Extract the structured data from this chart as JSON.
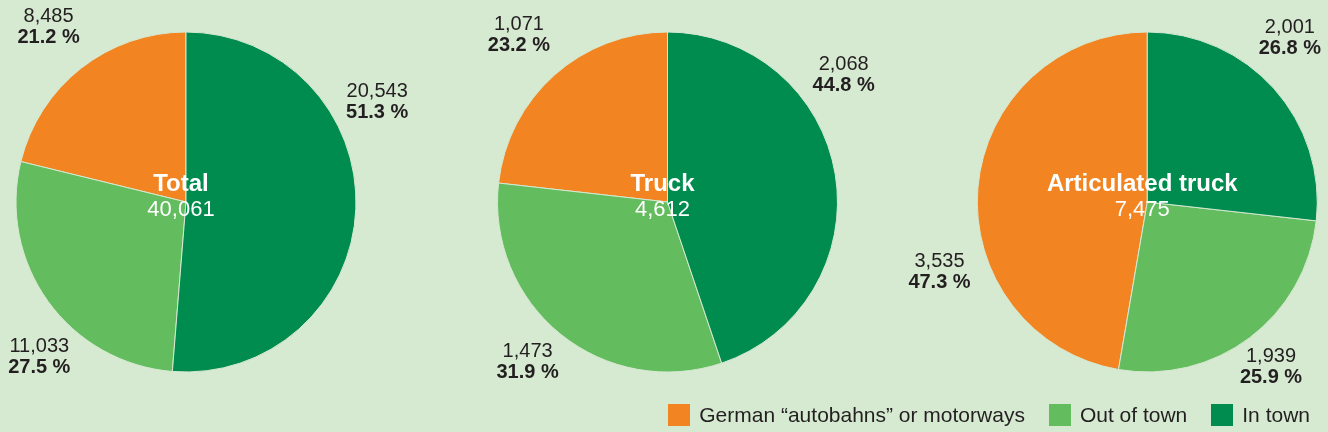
{
  "chart_data": [
    {
      "type": "pie",
      "title": "Total",
      "subtitle": "40,061",
      "categories": [
        null,
        null,
        null
      ],
      "values": [
        8485,
        11033,
        20543
      ],
      "colors": [
        "#f28522",
        "#63bc5e",
        "#008c4f"
      ],
      "value_labels": [
        "8,485\n21.2 %",
        "11,033\n27.5 %",
        "20,543\n51.3 %"
      ]
    },
    {
      "type": "pie",
      "title": "Truck",
      "subtitle": "4,612",
      "categories": [
        null,
        null,
        null
      ],
      "values": [
        1071,
        1473,
        2068
      ],
      "colors": [
        "#f28522",
        "#63bc5e",
        "#008c4f"
      ],
      "value_labels": [
        "1,071\n23.2 %",
        "1,473\n31.9 %",
        "2,068\n44.8 %"
      ]
    },
    {
      "type": "pie",
      "title": "Articulated truck",
      "subtitle": "7,475",
      "categories": [
        "German “autobahns” or motorways",
        "Out of town",
        "In town"
      ],
      "values": [
        3535,
        1939,
        2001
      ],
      "colors": [
        "#f28522",
        "#63bc5e",
        "#008c4f"
      ],
      "value_labels": [
        "3,535\n47.3 %",
        "1,939\n25.9 %",
        "2,001\n26.8 %"
      ],
      "legend": "bottom"
    }
  ]
}
